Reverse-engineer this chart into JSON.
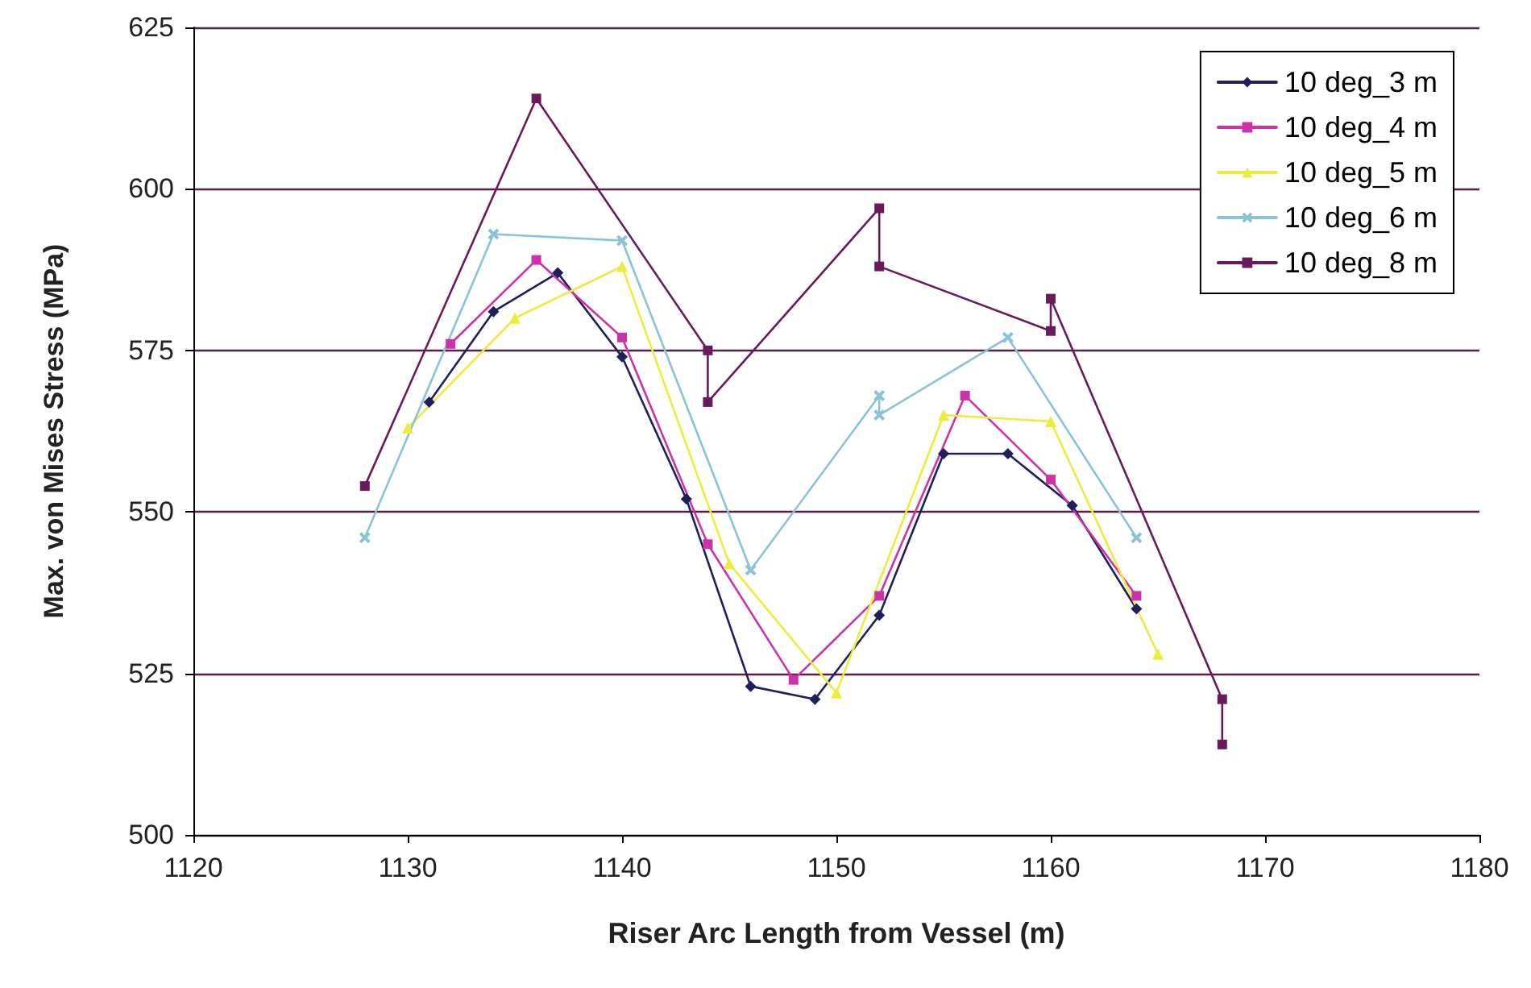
{
  "chart_data": {
    "type": "line",
    "xlabel": "Riser Arc Length from Vessel (m)",
    "ylabel": "Max. von Mises Stress (MPa)",
    "xlim": [
      1120,
      1180
    ],
    "xticks": [
      1120,
      1130,
      1140,
      1150,
      1160,
      1170,
      1180
    ],
    "ylim": [
      500,
      625
    ],
    "yticks": [
      500,
      525,
      550,
      575,
      600,
      625
    ],
    "grid": "y",
    "legend": "top right",
    "line_style": "solid",
    "series": [
      {
        "name": "10 deg_3 m",
        "color": "#1f1f5c",
        "marker": "diamond",
        "x": [
          1131,
          1134,
          1137,
          1140,
          1143,
          1146,
          1149,
          1152,
          1155,
          1158,
          1161,
          1164
        ],
        "values": [
          567,
          581,
          587,
          574,
          552,
          523,
          521,
          534,
          559,
          559,
          551,
          535
        ]
      },
      {
        "name": "10 deg_4 m",
        "color": "#cc33aa",
        "marker": "square",
        "x": [
          1132,
          1136,
          1140,
          1144,
          1148,
          1152,
          1156,
          1160,
          1164
        ],
        "values": [
          576,
          589,
          577,
          545,
          524,
          537,
          568,
          555,
          537
        ]
      },
      {
        "name": "10 deg_5 m",
        "color": "#ecec3c",
        "marker": "triangle",
        "x": [
          1130,
          1135,
          1140,
          1145,
          1150,
          1155,
          1160,
          1165
        ],
        "values": [
          563,
          580,
          588,
          542,
          522,
          565,
          564,
          528
        ]
      },
      {
        "name": "10 deg_6 m",
        "color": "#88c4d6",
        "marker": "cross",
        "x": [
          1128,
          1134,
          1140,
          1146,
          1152,
          1152,
          1158,
          1164
        ],
        "values": [
          546,
          593,
          592,
          541,
          568,
          565,
          577,
          546
        ]
      },
      {
        "name": "10 deg_8 m",
        "color": "#6a1a5a",
        "marker": "square",
        "x": [
          1128,
          1136,
          1144,
          1144,
          1152,
          1152,
          1160,
          1160,
          1168,
          1168
        ],
        "values": [
          554,
          614,
          575,
          567,
          597,
          588,
          578,
          583,
          521,
          514
        ]
      }
    ]
  }
}
